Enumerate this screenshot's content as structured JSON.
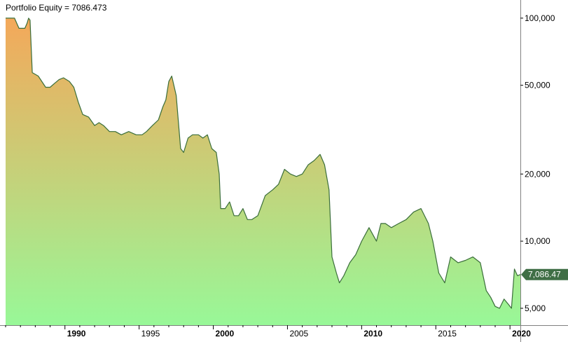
{
  "chart_data": {
    "type": "area",
    "title": "Portfolio Equity = 7086.473",
    "yscale": "log",
    "ylim": [
      4200,
      118000
    ],
    "xlim": [
      1986.0,
      2020.7
    ],
    "y_ticks": [
      {
        "value": 100000,
        "label": "100,000"
      },
      {
        "value": 50000,
        "label": "50,000"
      },
      {
        "value": 20000,
        "label": "20,000"
      },
      {
        "value": 10000,
        "label": "10,000"
      },
      {
        "value": 5000,
        "label": "5,000"
      }
    ],
    "x_ticks": [
      {
        "value": 1990,
        "label": "1990",
        "bold": true
      },
      {
        "value": 1995,
        "label": "1995",
        "bold": false
      },
      {
        "value": 2000,
        "label": "2000",
        "bold": true
      },
      {
        "value": 2005,
        "label": "2005",
        "bold": false
      },
      {
        "value": 2010,
        "label": "2010",
        "bold": true
      },
      {
        "value": 2015,
        "label": "2015",
        "bold": false
      },
      {
        "value": 2020,
        "label": "2020",
        "bold": true
      }
    ],
    "last_value_label": "7,086.47",
    "colors": {
      "fill_top": "#f4a85a",
      "fill_bottom": "#98f898",
      "line": "#3a6e3a",
      "axis": "#808080",
      "last_value_bg": "#3f6e45",
      "last_value_text": "#ffffff"
    },
    "series": [
      {
        "x": [
          1986.0,
          1986.6,
          1986.9,
          1987.0,
          1987.3,
          1987.45,
          1987.55,
          1987.65,
          1987.8,
          1988.2,
          1988.7,
          1989.0,
          1989.3,
          1989.6,
          1989.9,
          1990.3,
          1990.6,
          1990.9,
          1991.2,
          1991.6,
          1992.0,
          1992.3,
          1992.6,
          1993.0,
          1993.4,
          1993.8,
          1994.3,
          1994.8,
          1995.2,
          1995.5,
          1995.9,
          1996.3,
          1996.6,
          1996.8,
          1997.0,
          1997.2,
          1997.5,
          1997.8,
          1998.0,
          1998.3,
          1998.6,
          1999.0,
          1999.3,
          1999.6,
          1999.9,
          2000.2,
          2000.4,
          2000.5,
          2000.8,
          2001.1,
          2001.4,
          2001.7,
          2002.0,
          2002.3,
          2002.6,
          2003.0,
          2003.5,
          2004.0,
          2004.4,
          2004.8,
          2005.2,
          2005.6,
          2006.0,
          2006.4,
          2006.8,
          2007.2,
          2007.5,
          2007.8,
          2008.0,
          2008.3,
          2008.5,
          2008.8,
          2009.2,
          2009.6,
          2010.0,
          2010.5,
          2011.0,
          2011.3,
          2011.6,
          2012.0,
          2012.5,
          2013.0,
          2013.5,
          2014.0,
          2014.5,
          2014.8,
          2015.2,
          2015.6,
          2016.0,
          2016.5,
          2017.0,
          2017.5,
          2018.0,
          2018.4,
          2018.7,
          2019.0,
          2019.3,
          2019.6,
          2019.9,
          2020.1,
          2020.3,
          2020.5,
          2020.7
        ],
        "values": [
          100000,
          100000,
          90000,
          90000,
          90000,
          95000,
          100000,
          98000,
          57000,
          55000,
          49000,
          49000,
          51000,
          53000,
          54000,
          52000,
          49000,
          42000,
          37000,
          36000,
          33000,
          34000,
          33000,
          31000,
          31000,
          30000,
          31000,
          30000,
          30000,
          31000,
          33000,
          35000,
          40000,
          43000,
          52000,
          55000,
          45000,
          26000,
          25000,
          29000,
          30000,
          30000,
          29000,
          30000,
          26000,
          25000,
          20000,
          14000,
          14000,
          15000,
          13000,
          13000,
          14000,
          12500,
          12500,
          13000,
          16000,
          17000,
          18000,
          21000,
          20000,
          19500,
          20000,
          22000,
          23000,
          24500,
          22000,
          17000,
          8500,
          7200,
          6500,
          7000,
          8000,
          8700,
          10000,
          11500,
          10000,
          12000,
          12000,
          11500,
          12000,
          12500,
          13500,
          14000,
          12000,
          10000,
          7200,
          6500,
          8500,
          8000,
          8200,
          8500,
          8000,
          6000,
          5600,
          5100,
          5000,
          5500,
          5200,
          5000,
          7500,
          7000,
          7086.473
        ]
      }
    ]
  }
}
